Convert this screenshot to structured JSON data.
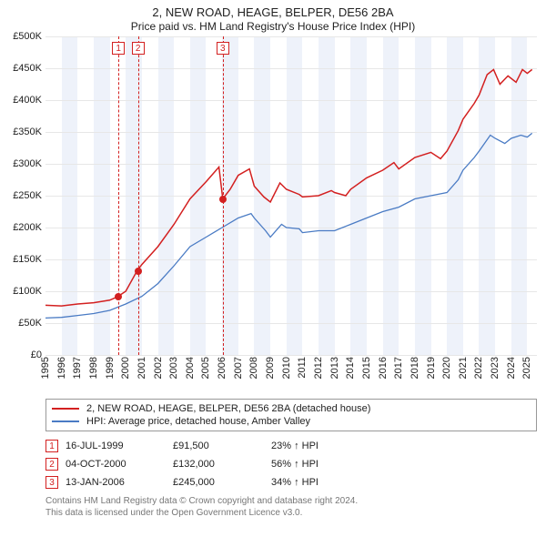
{
  "title": "2, NEW ROAD, HEAGE, BELPER, DE56 2BA",
  "subtitle": "Price paid vs. HM Land Registry's House Price Index (HPI)",
  "chart": {
    "type": "line",
    "xlim": [
      1995,
      2025.6
    ],
    "ylim": [
      0,
      500000
    ],
    "ytick_step": 50000,
    "yticks": [
      "£0",
      "£50K",
      "£100K",
      "£150K",
      "£200K",
      "£250K",
      "£300K",
      "£350K",
      "£400K",
      "£450K",
      "£500K"
    ],
    "xticks": [
      1995,
      1996,
      1997,
      1998,
      1999,
      2000,
      2001,
      2002,
      2003,
      2004,
      2005,
      2006,
      2007,
      2008,
      2009,
      2010,
      2011,
      2012,
      2013,
      2014,
      2015,
      2016,
      2017,
      2018,
      2019,
      2020,
      2021,
      2022,
      2023,
      2024,
      2025
    ],
    "background_color": "#ffffff",
    "grid_color": "#e7e7e7",
    "shade_color": "#eef2fa",
    "shade_years": [
      1996,
      1998,
      2000,
      2002,
      2004,
      2006,
      2008,
      2010,
      2012,
      2014,
      2016,
      2018,
      2020,
      2022,
      2024
    ],
    "series": [
      {
        "name": "property",
        "label": "2, NEW ROAD, HEAGE, BELPER, DE56 2BA (detached house)",
        "color": "#d32020",
        "line_width": 1.5,
        "points": [
          [
            1995,
            78000
          ],
          [
            1996,
            77000
          ],
          [
            1997,
            80000
          ],
          [
            1998,
            82000
          ],
          [
            1999,
            86000
          ],
          [
            1999.5,
            91500
          ],
          [
            2000,
            100000
          ],
          [
            2000.7,
            132000
          ],
          [
            2001,
            142000
          ],
          [
            2002,
            170000
          ],
          [
            2003,
            205000
          ],
          [
            2004,
            245000
          ],
          [
            2005,
            272000
          ],
          [
            2005.8,
            295000
          ],
          [
            2006.04,
            245000
          ],
          [
            2006.5,
            260000
          ],
          [
            2007,
            282000
          ],
          [
            2007.7,
            292000
          ],
          [
            2008,
            265000
          ],
          [
            2008.6,
            248000
          ],
          [
            2009,
            240000
          ],
          [
            2009.6,
            270000
          ],
          [
            2010,
            260000
          ],
          [
            2010.8,
            252000
          ],
          [
            2011,
            248000
          ],
          [
            2012,
            250000
          ],
          [
            2012.8,
            258000
          ],
          [
            2013,
            255000
          ],
          [
            2013.7,
            250000
          ],
          [
            2014,
            260000
          ],
          [
            2015,
            278000
          ],
          [
            2016,
            290000
          ],
          [
            2016.7,
            302000
          ],
          [
            2017,
            292000
          ],
          [
            2018,
            310000
          ],
          [
            2019,
            318000
          ],
          [
            2019.6,
            308000
          ],
          [
            2020,
            320000
          ],
          [
            2020.7,
            352000
          ],
          [
            2021,
            370000
          ],
          [
            2021.7,
            395000
          ],
          [
            2022,
            408000
          ],
          [
            2022.5,
            440000
          ],
          [
            2022.9,
            448000
          ],
          [
            2023.3,
            425000
          ],
          [
            2023.8,
            438000
          ],
          [
            2024.3,
            428000
          ],
          [
            2024.7,
            448000
          ],
          [
            2025,
            442000
          ],
          [
            2025.3,
            448000
          ]
        ]
      },
      {
        "name": "hpi",
        "label": "HPI: Average price, detached house, Amber Valley",
        "color": "#4a7bc4",
        "line_width": 1.3,
        "points": [
          [
            1995,
            58000
          ],
          [
            1996,
            59000
          ],
          [
            1997,
            62000
          ],
          [
            1998,
            65000
          ],
          [
            1999,
            70000
          ],
          [
            2000,
            80000
          ],
          [
            2001,
            92000
          ],
          [
            2002,
            112000
          ],
          [
            2003,
            140000
          ],
          [
            2004,
            170000
          ],
          [
            2005,
            185000
          ],
          [
            2006,
            200000
          ],
          [
            2007,
            215000
          ],
          [
            2007.8,
            222000
          ],
          [
            2008,
            215000
          ],
          [
            2008.7,
            195000
          ],
          [
            2009,
            185000
          ],
          [
            2009.7,
            205000
          ],
          [
            2010,
            200000
          ],
          [
            2010.8,
            198000
          ],
          [
            2011,
            192000
          ],
          [
            2012,
            195000
          ],
          [
            2013,
            195000
          ],
          [
            2014,
            205000
          ],
          [
            2015,
            215000
          ],
          [
            2016,
            225000
          ],
          [
            2017,
            232000
          ],
          [
            2018,
            245000
          ],
          [
            2019,
            250000
          ],
          [
            2020,
            255000
          ],
          [
            2020.7,
            275000
          ],
          [
            2021,
            290000
          ],
          [
            2021.7,
            310000
          ],
          [
            2022,
            320000
          ],
          [
            2022.7,
            345000
          ],
          [
            2023,
            340000
          ],
          [
            2023.6,
            332000
          ],
          [
            2024,
            340000
          ],
          [
            2024.6,
            345000
          ],
          [
            2025,
            342000
          ],
          [
            2025.3,
            348000
          ]
        ]
      }
    ],
    "sale_markers": [
      {
        "n": "1",
        "year": 1999.54,
        "price": 91500
      },
      {
        "n": "2",
        "year": 2000.76,
        "price": 132000
      },
      {
        "n": "3",
        "year": 2006.04,
        "price": 245000
      }
    ],
    "marker_border_color": "#d32020",
    "vline_color": "#d32020"
  },
  "legend": [
    {
      "color": "#d32020",
      "label": "2, NEW ROAD, HEAGE, BELPER, DE56 2BA (detached house)"
    },
    {
      "color": "#4a7bc4",
      "label": "HPI: Average price, detached house, Amber Valley"
    }
  ],
  "sales": [
    {
      "n": "1",
      "date": "16-JUL-1999",
      "price": "£91,500",
      "delta": "23% ↑ HPI"
    },
    {
      "n": "2",
      "date": "04-OCT-2000",
      "price": "£132,000",
      "delta": "56% ↑ HPI"
    },
    {
      "n": "3",
      "date": "13-JAN-2006",
      "price": "£245,000",
      "delta": "34% ↑ HPI"
    }
  ],
  "footer1": "Contains HM Land Registry data © Crown copyright and database right 2024.",
  "footer2": "This data is licensed under the Open Government Licence v3.0."
}
